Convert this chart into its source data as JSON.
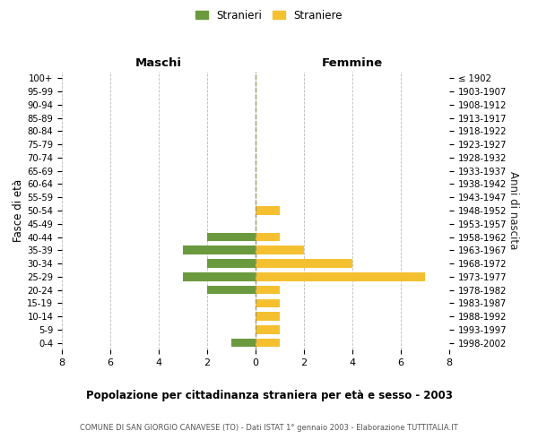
{
  "age_groups": [
    "100+",
    "95-99",
    "90-94",
    "85-89",
    "80-84",
    "75-79",
    "70-74",
    "65-69",
    "60-64",
    "55-59",
    "50-54",
    "45-49",
    "40-44",
    "35-39",
    "30-34",
    "25-29",
    "20-24",
    "15-19",
    "10-14",
    "5-9",
    "0-4"
  ],
  "birth_years": [
    "≤ 1902",
    "1903-1907",
    "1908-1912",
    "1913-1917",
    "1918-1922",
    "1923-1927",
    "1928-1932",
    "1933-1937",
    "1938-1942",
    "1943-1947",
    "1948-1952",
    "1953-1957",
    "1958-1962",
    "1963-1967",
    "1968-1972",
    "1973-1977",
    "1978-1982",
    "1983-1987",
    "1988-1992",
    "1993-1997",
    "1998-2002"
  ],
  "maschi": [
    0,
    0,
    0,
    0,
    0,
    0,
    0,
    0,
    0,
    0,
    0,
    0,
    2,
    3,
    2,
    3,
    2,
    0,
    0,
    0,
    1
  ],
  "femmine": [
    0,
    0,
    0,
    0,
    0,
    0,
    0,
    0,
    0,
    0,
    1,
    0,
    1,
    2,
    4,
    7,
    1,
    1,
    1,
    1,
    1
  ],
  "color_maschi": "#6b9a3e",
  "color_femmine": "#f5c030",
  "title": "Popolazione per cittadinanza straniera per età e sesso - 2003",
  "subtitle": "COMUNE DI SAN GIORGIO CANAVESE (TO) - Dati ISTAT 1° gennaio 2003 - Elaborazione TUTTITALIA.IT",
  "ylabel_left": "Fasce di età",
  "ylabel_right": "Anni di nascita",
  "label_maschi": "Maschi",
  "label_femmine": "Femmine",
  "legend_maschi": "Stranieri",
  "legend_femmine": "Straniere",
  "xlim": 8,
  "background_color": "#ffffff",
  "grid_color": "#bbbbbb"
}
